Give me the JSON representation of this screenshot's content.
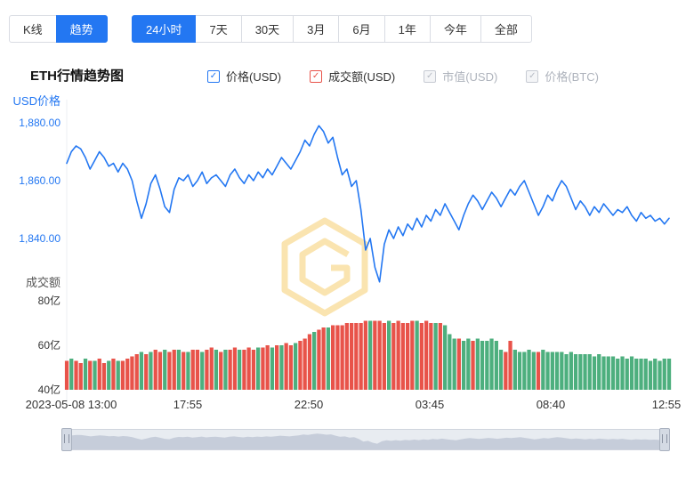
{
  "colors": {
    "accent": "#2377F2",
    "volume_up": "#4DAF7E",
    "volume_down": "#E8534A",
    "disabled": "#C0C4CC",
    "watermark": "#F5C451"
  },
  "tabs": {
    "chart_type": [
      {
        "label": "K线",
        "active": false
      },
      {
        "label": "趋势",
        "active": true
      }
    ],
    "time_range": [
      {
        "label": "24小时",
        "active": true
      },
      {
        "label": "7天",
        "active": false
      },
      {
        "label": "30天",
        "active": false
      },
      {
        "label": "3月",
        "active": false
      },
      {
        "label": "6月",
        "active": false
      },
      {
        "label": "1年",
        "active": false
      },
      {
        "label": "今年",
        "active": false
      },
      {
        "label": "全部",
        "active": false
      }
    ]
  },
  "header": {
    "title": "ETH行情趋势图"
  },
  "legend": [
    {
      "label": "价格(USD)",
      "color": "#2377F2",
      "checked": true,
      "disabled": false
    },
    {
      "label": "成交额(USD)",
      "color": "#E8534A",
      "checked": true,
      "disabled": false
    },
    {
      "label": "市值(USD)",
      "color": "#C0C4CC",
      "checked": true,
      "disabled": true
    },
    {
      "label": "价格(BTC)",
      "color": "#C0C4CC",
      "checked": true,
      "disabled": true
    }
  ],
  "chart_data": {
    "type": "line+bar",
    "title": "ETH行情趋势图",
    "price_axis": {
      "label": "USD价格",
      "ticks": [
        "1,880.00",
        "1,860.00",
        "1,840.00"
      ],
      "range": [
        1820,
        1885
      ]
    },
    "volume_axis": {
      "label": "成交额",
      "ticks": [
        "80亿",
        "60亿",
        "40亿"
      ],
      "range": [
        40,
        80
      ]
    },
    "x_ticks": [
      "2023-05-08 13:00",
      "17:55",
      "22:50",
      "03:45",
      "08:40",
      "12:55"
    ],
    "grid": false,
    "series": [
      {
        "name": "价格(USD)",
        "type": "line",
        "color": "#2377F2",
        "values": [
          1866,
          1870,
          1872,
          1871,
          1868,
          1864,
          1867,
          1870,
          1868,
          1865,
          1866,
          1863,
          1866,
          1864,
          1860,
          1853,
          1847,
          1852,
          1859,
          1862,
          1857,
          1851,
          1849,
          1857,
          1861,
          1860,
          1862,
          1858,
          1860,
          1863,
          1859,
          1861,
          1862,
          1860,
          1858,
          1862,
          1864,
          1861,
          1859,
          1862,
          1860,
          1863,
          1861,
          1864,
          1862,
          1865,
          1868,
          1866,
          1864,
          1867,
          1870,
          1874,
          1872,
          1876,
          1879,
          1877,
          1873,
          1875,
          1868,
          1862,
          1864,
          1858,
          1860,
          1850,
          1836,
          1840,
          1830,
          1825,
          1838,
          1843,
          1840,
          1844,
          1841,
          1845,
          1843,
          1847,
          1844,
          1848,
          1846,
          1850,
          1848,
          1852,
          1849,
          1846,
          1843,
          1848,
          1852,
          1855,
          1853,
          1850,
          1853,
          1856,
          1854,
          1851,
          1854,
          1857,
          1855,
          1858,
          1860,
          1856,
          1852,
          1848,
          1851,
          1855,
          1853,
          1857,
          1860,
          1858,
          1854,
          1850,
          1853,
          1851,
          1848,
          1851,
          1849,
          1852,
          1850,
          1848,
          1850,
          1849,
          1851,
          1848,
          1846,
          1849,
          1847,
          1848,
          1846,
          1847,
          1845,
          1847
        ]
      },
      {
        "name": "成交额(USD)",
        "type": "bar",
        "unit": "亿",
        "palette": {
          "r": "#E8534A",
          "g": "#4DAF7E"
        },
        "values": [
          53,
          54,
          53,
          52,
          54,
          53,
          53,
          54,
          52,
          53,
          54,
          53,
          53,
          54,
          55,
          56,
          57,
          56,
          57,
          58,
          57,
          58,
          57,
          58,
          58,
          57,
          57,
          58,
          58,
          57,
          58,
          59,
          58,
          57,
          58,
          58,
          59,
          58,
          58,
          59,
          58,
          59,
          59,
          60,
          59,
          60,
          60,
          61,
          60,
          61,
          62,
          63,
          65,
          66,
          67,
          68,
          68,
          69,
          69,
          69,
          70,
          70,
          70,
          70,
          71,
          71,
          71,
          71,
          70,
          71,
          70,
          71,
          70,
          70,
          71,
          71,
          70,
          71,
          70,
          70,
          70,
          69,
          65,
          63,
          63,
          62,
          63,
          62,
          63,
          62,
          62,
          63,
          62,
          58,
          57,
          62,
          58,
          57,
          57,
          58,
          57,
          57,
          58,
          57,
          57,
          57,
          57,
          56,
          57,
          56,
          56,
          56,
          56,
          55,
          56,
          55,
          55,
          55,
          54,
          55,
          54,
          55,
          54,
          54,
          54,
          53,
          54,
          53,
          54,
          54
        ],
        "color_pattern_segments": [
          "rgrrgrgrrgrgrr",
          "rrgrgrrgrrgr",
          "grrgrrgrgrrgrr",
          "rgrrgrgrrg",
          "rrrgrrgr",
          "rrrr",
          "rrrgrrrgrrr",
          "rrgrrrgr",
          "gggrggrg",
          "gggggrrgg",
          "gggrggg",
          "ggggggg",
          "gggggggg",
          "gggggggggg"
        ]
      }
    ]
  }
}
